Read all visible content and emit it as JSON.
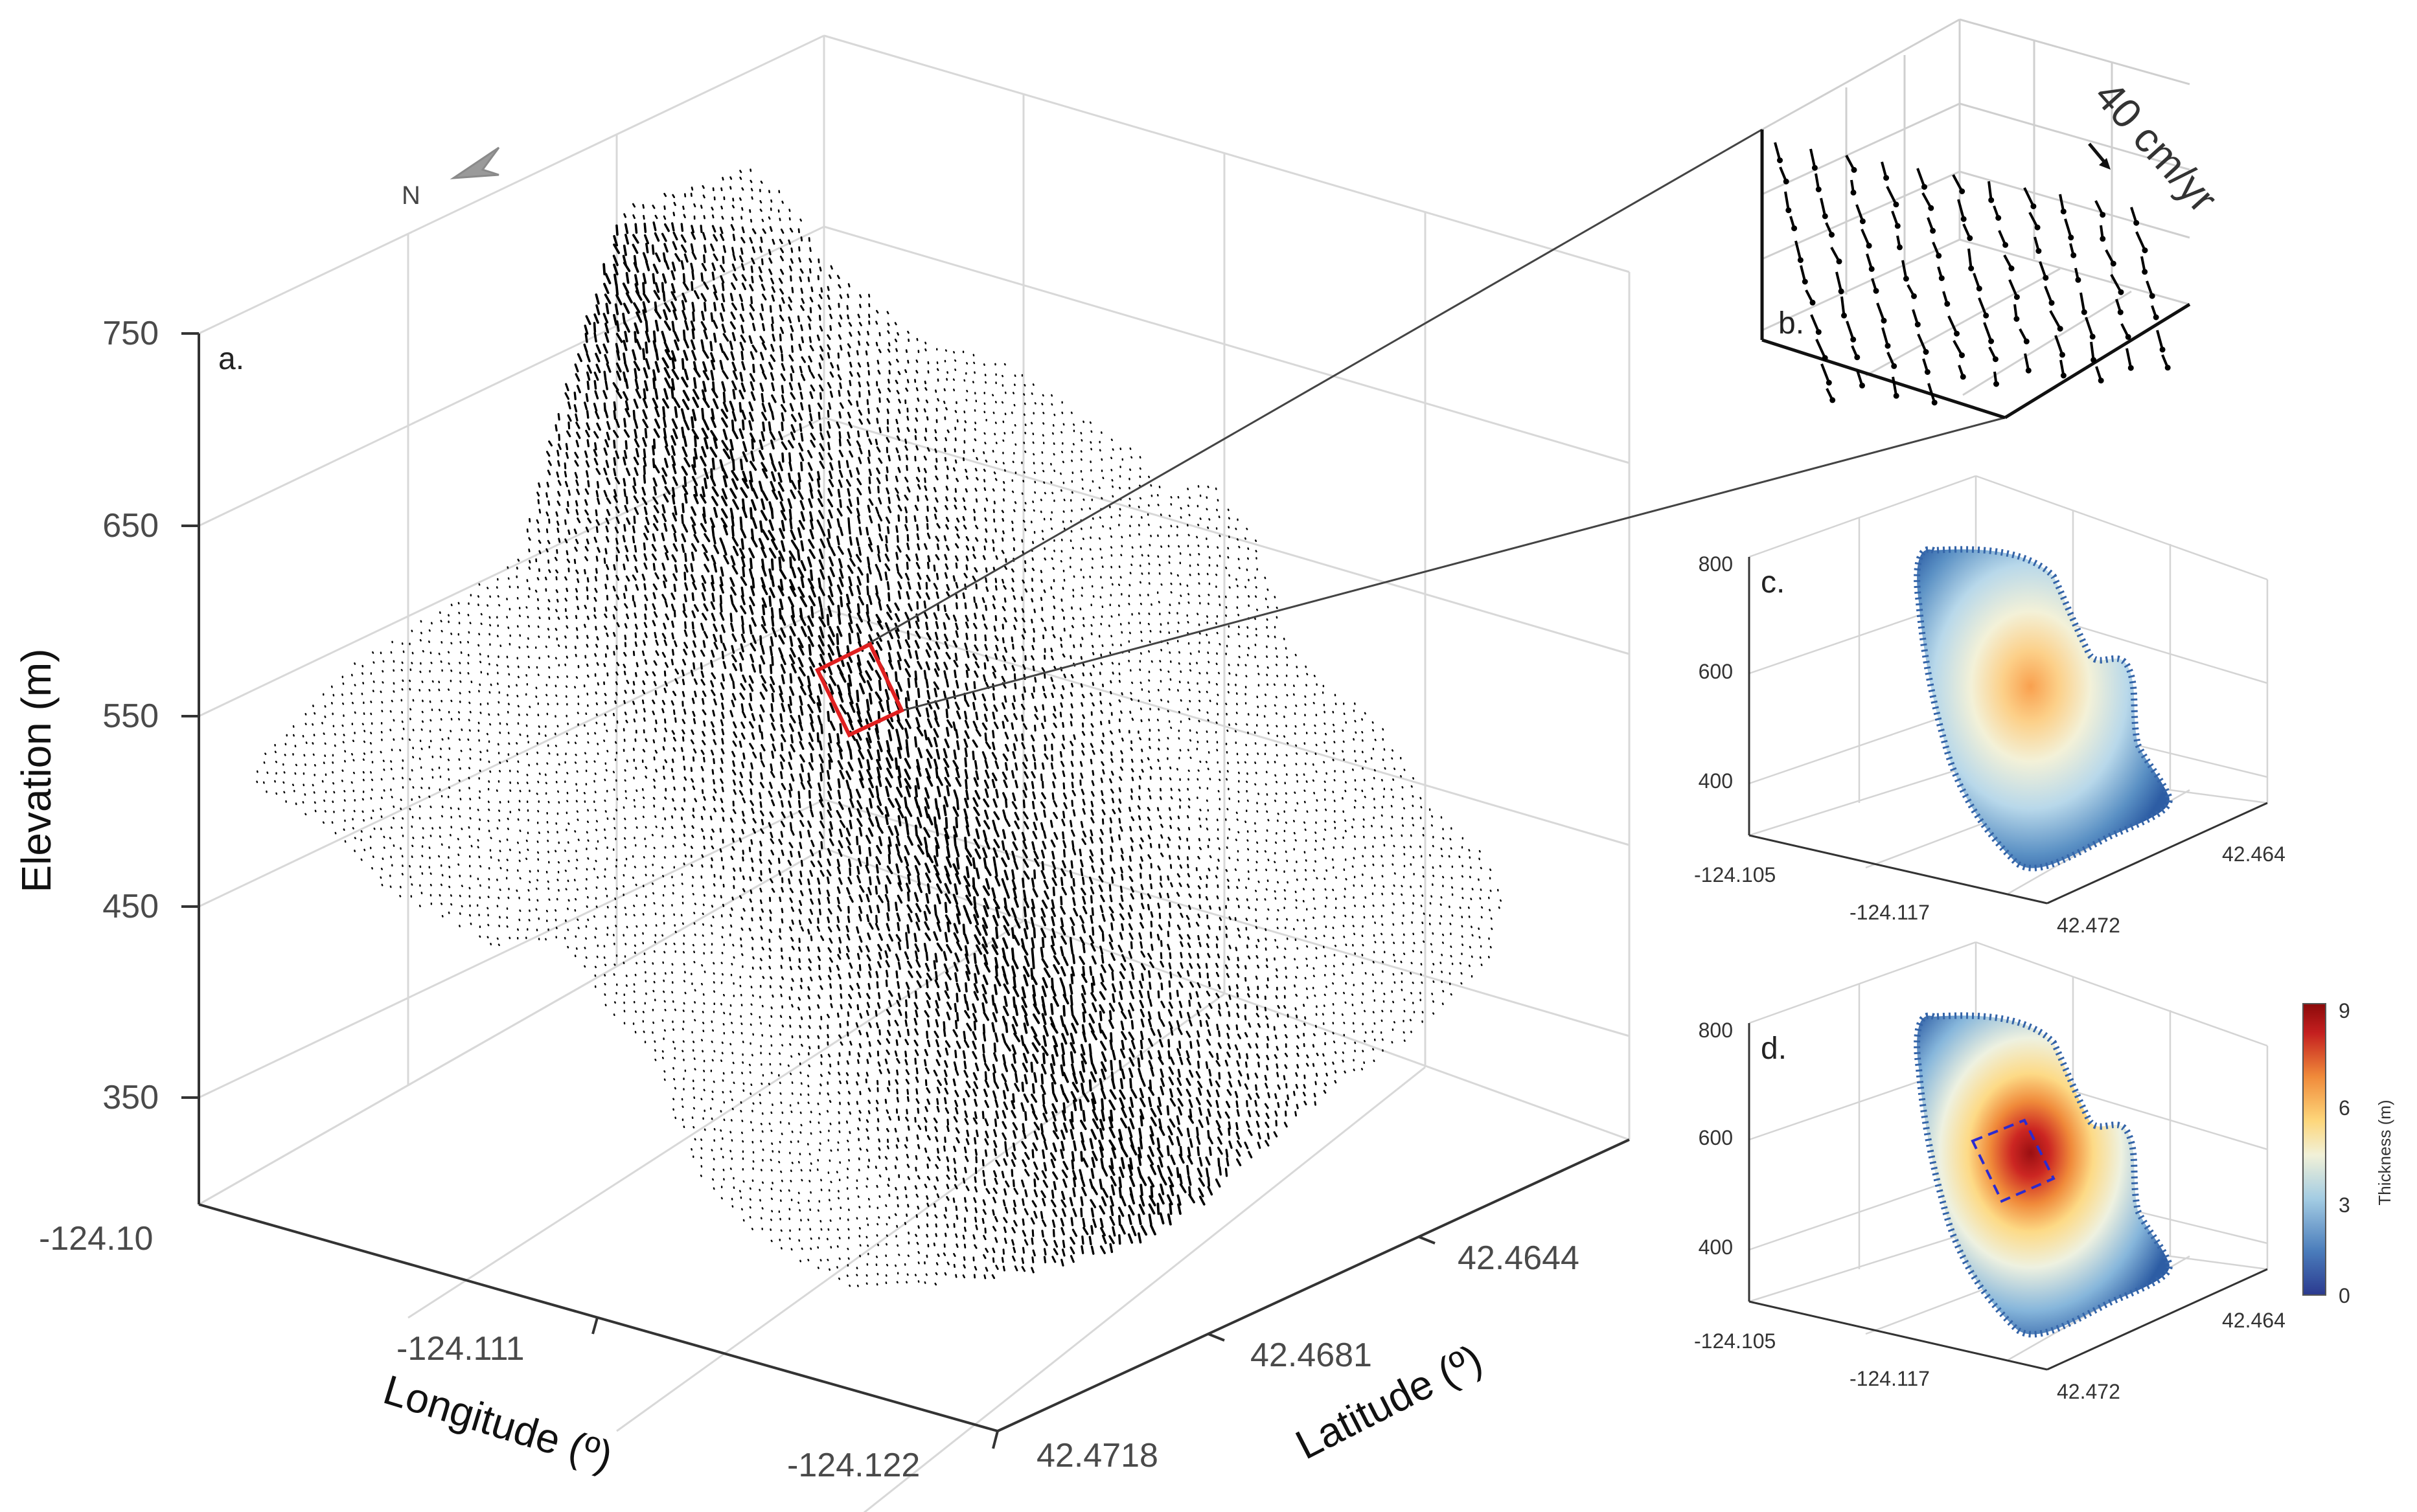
{
  "chart_data": [
    {
      "panel": "a.",
      "type": "scatter",
      "description_labels": {
        "zlabel": "Elevation (m)",
        "xlabel": "Longitude (º)",
        "ylabel": "Latitude (º)",
        "north": "N"
      },
      "z_ticks": [
        "750",
        "650",
        "550",
        "450",
        "350"
      ],
      "zlim": [
        300,
        760
      ],
      "x_ticks": [
        "-124.10",
        "-124.111",
        "-124.122"
      ],
      "y_ticks": [
        "42.4644",
        "42.4681",
        "42.4718"
      ],
      "grid": true
    },
    {
      "panel": "b.",
      "type": "scatter",
      "annotation": "40 cm/yr"
    },
    {
      "panel": "c.",
      "type": "scatter",
      "z_ticks": [
        "800",
        "600",
        "400"
      ],
      "x_ticks": [
        "-124.105",
        "-124.117"
      ],
      "y_ticks": [
        "42.464",
        "42.472"
      ],
      "peak_thickness_m": 6
    },
    {
      "panel": "d.",
      "type": "scatter",
      "z_ticks": [
        "800",
        "600",
        "400"
      ],
      "x_ticks": [
        "-124.105",
        "-124.117"
      ],
      "y_ticks": [
        "42.464",
        "42.472"
      ],
      "peak_thickness_m": 9,
      "colorbar": {
        "label": "Thickness (m)",
        "ticks": [
          "9",
          "6",
          "3",
          "0"
        ],
        "colors": [
          "#2b3a8f",
          "#4a7cbb",
          "#a3cce3",
          "#f1f1d8",
          "#fdd67a",
          "#f08a3a",
          "#c41f1f",
          "#8b0a0a"
        ]
      }
    }
  ],
  "colors": {
    "highlight_box": "#e02020",
    "dashed_box": "#2b2bd0",
    "points": "#000000"
  }
}
